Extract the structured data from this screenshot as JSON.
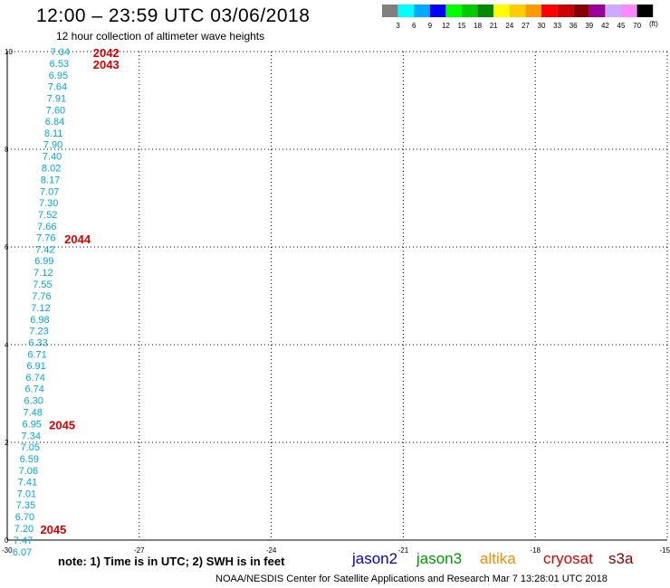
{
  "header": {
    "title": "12:00 – 23:59 UTC 03/06/2018",
    "subtitle": "12 hour collection of altimeter wave heights"
  },
  "color_scale": {
    "unit": "(ft)",
    "bins": [
      {
        "label": "3",
        "color": "#808080"
      },
      {
        "label": "6",
        "color": "#00ffff"
      },
      {
        "label": "9",
        "color": "#00aaff"
      },
      {
        "label": "12",
        "color": "#0000ff"
      },
      {
        "label": "15",
        "color": "#00ff00"
      },
      {
        "label": "18",
        "color": "#00cc00"
      },
      {
        "label": "21",
        "color": "#008800"
      },
      {
        "label": "24",
        "color": "#ffff00"
      },
      {
        "label": "27",
        "color": "#ffcc00"
      },
      {
        "label": "30",
        "color": "#ff9900"
      },
      {
        "label": "33",
        "color": "#ff0000"
      },
      {
        "label": "36",
        "color": "#cc0000"
      },
      {
        "label": "39",
        "color": "#880000"
      },
      {
        "label": "42",
        "color": "#990099"
      },
      {
        "label": "45",
        "color": "#ccaaff"
      },
      {
        "label": "70",
        "color": "#ff88ff"
      },
      {
        "label": "",
        "color": "#000000"
      }
    ]
  },
  "footer": {
    "note": "note: 1) Time is in UTC; 2) SWH is in feet",
    "credit": "NOAA/NESDIS Center for Satellite Applications and Research    Mar  7 13:28:01 UTC 2018"
  },
  "satellites": {
    "jason2": "jason2",
    "jason3": "jason3",
    "altika": "altika",
    "cryosat": "cryosat",
    "s3a": "s3a"
  },
  "chart_data": {
    "type": "scatter",
    "xlim": [
      -30,
      -15
    ],
    "ylim": [
      0,
      10
    ],
    "xticks": [
      "-30",
      "-27",
      "-24",
      "-21",
      "-18",
      "-15"
    ],
    "yticks": [
      "0",
      "2",
      "4",
      "6",
      "8",
      "10"
    ],
    "grid": true,
    "value_color": "#00aadd",
    "time_color": "#dd0000",
    "points": [
      {
        "x": -29.02,
        "y": 10.0,
        "value": "7.04"
      },
      {
        "x": -29.04,
        "y": 9.76,
        "value": "6.53"
      },
      {
        "x": -29.06,
        "y": 9.52,
        "value": "6.95"
      },
      {
        "x": -29.08,
        "y": 9.29,
        "value": "7.64"
      },
      {
        "x": -29.1,
        "y": 9.05,
        "value": "7.91"
      },
      {
        "x": -29.12,
        "y": 8.81,
        "value": "7.60"
      },
      {
        "x": -29.14,
        "y": 8.57,
        "value": "6.84"
      },
      {
        "x": -29.16,
        "y": 8.33,
        "value": "8.11"
      },
      {
        "x": -29.18,
        "y": 8.1,
        "value": "7.90"
      },
      {
        "x": -29.2,
        "y": 7.86,
        "value": "7.40"
      },
      {
        "x": -29.22,
        "y": 7.62,
        "value": "8.02"
      },
      {
        "x": -29.24,
        "y": 7.38,
        "value": "8.17"
      },
      {
        "x": -29.26,
        "y": 7.14,
        "value": "7.07"
      },
      {
        "x": -29.28,
        "y": 6.91,
        "value": "7.30"
      },
      {
        "x": -29.3,
        "y": 6.67,
        "value": "7.52"
      },
      {
        "x": -29.32,
        "y": 6.43,
        "value": "7.66"
      },
      {
        "x": -29.34,
        "y": 6.19,
        "value": "7.76"
      },
      {
        "x": -29.36,
        "y": 5.95,
        "value": "7.42"
      },
      {
        "x": -29.38,
        "y": 5.72,
        "value": "6.99"
      },
      {
        "x": -29.4,
        "y": 5.48,
        "value": "7.12"
      },
      {
        "x": -29.42,
        "y": 5.24,
        "value": "7.55"
      },
      {
        "x": -29.44,
        "y": 5.0,
        "value": "7.76"
      },
      {
        "x": -29.46,
        "y": 4.76,
        "value": "7.12"
      },
      {
        "x": -29.48,
        "y": 4.52,
        "value": "6.98"
      },
      {
        "x": -29.5,
        "y": 4.29,
        "value": "7.23"
      },
      {
        "x": -29.52,
        "y": 4.05,
        "value": "6.33"
      },
      {
        "x": -29.54,
        "y": 3.81,
        "value": "6.71"
      },
      {
        "x": -29.56,
        "y": 3.57,
        "value": "6.91"
      },
      {
        "x": -29.58,
        "y": 3.33,
        "value": "6.74"
      },
      {
        "x": -29.6,
        "y": 3.1,
        "value": "6.74"
      },
      {
        "x": -29.62,
        "y": 2.86,
        "value": "6.30"
      },
      {
        "x": -29.64,
        "y": 2.62,
        "value": "7.48"
      },
      {
        "x": -29.66,
        "y": 2.38,
        "value": "6.95"
      },
      {
        "x": -29.68,
        "y": 2.14,
        "value": "7.34"
      },
      {
        "x": -29.7,
        "y": 1.91,
        "value": "7.05"
      },
      {
        "x": -29.72,
        "y": 1.67,
        "value": "6.59"
      },
      {
        "x": -29.74,
        "y": 1.43,
        "value": "7.06"
      },
      {
        "x": -29.76,
        "y": 1.19,
        "value": "7.41"
      },
      {
        "x": -29.78,
        "y": 0.95,
        "value": "7.01"
      },
      {
        "x": -29.8,
        "y": 0.72,
        "value": "7.35"
      },
      {
        "x": -29.82,
        "y": 0.48,
        "value": "6.70"
      },
      {
        "x": -29.84,
        "y": 0.24,
        "value": "7.20"
      },
      {
        "x": -29.86,
        "y": 0.0,
        "value": "7.47"
      },
      {
        "x": -29.88,
        "y": -0.24,
        "value": "6.07"
      }
    ],
    "time_labels": [
      {
        "x": -28.05,
        "y": 9.98,
        "label": "2042"
      },
      {
        "x": -28.05,
        "y": 9.74,
        "label": "2043"
      },
      {
        "x": -28.7,
        "y": 6.17,
        "label": "2044"
      },
      {
        "x": -29.05,
        "y": 2.36,
        "label": "2045"
      },
      {
        "x": -29.25,
        "y": 0.22,
        "label": "2045"
      }
    ]
  }
}
